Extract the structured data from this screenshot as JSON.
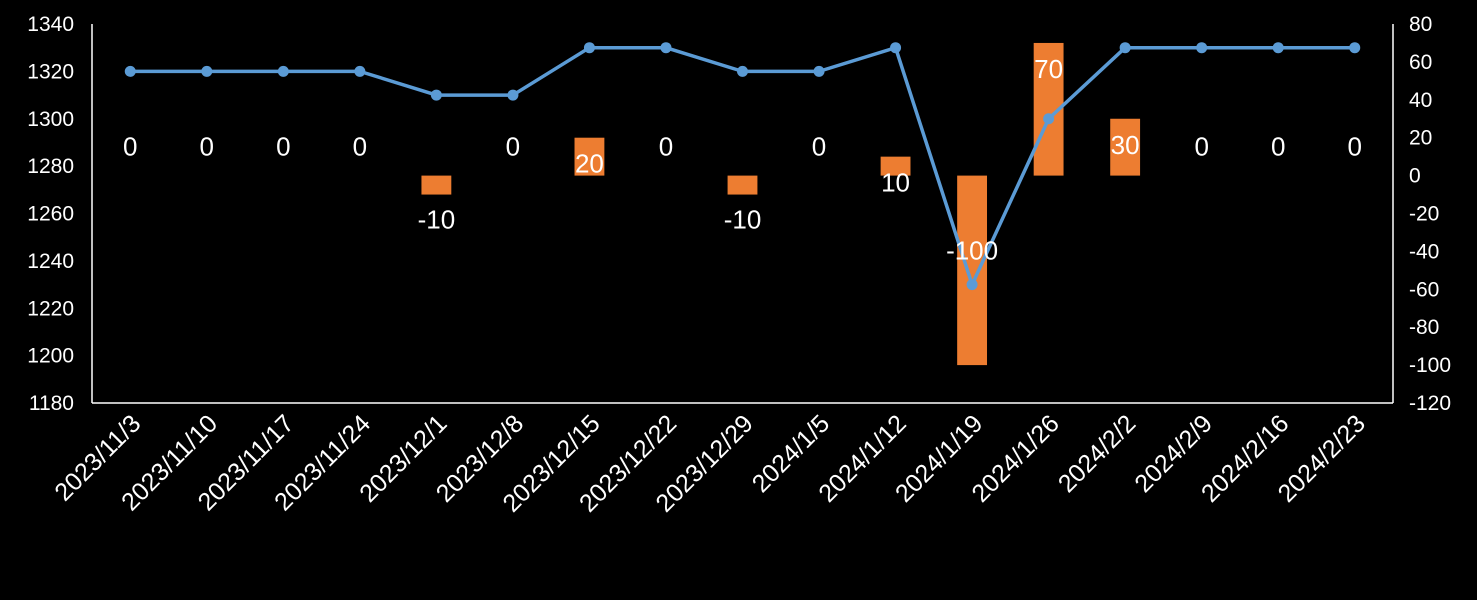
{
  "chart_data": {
    "type": "bar+line",
    "categories": [
      "2023/11/3",
      "2023/11/10",
      "2023/11/17",
      "2023/11/24",
      "2023/12/1",
      "2023/12/8",
      "2023/12/15",
      "2023/12/22",
      "2023/12/29",
      "2024/1/5",
      "2024/1/12",
      "2024/1/19",
      "2024/1/26",
      "2024/2/2",
      "2024/2/9",
      "2024/2/16",
      "2024/2/23"
    ],
    "series": [
      {
        "type": "line",
        "axis": "left",
        "color": "#5b9bd5",
        "values": [
          1320,
          1320,
          1320,
          1320,
          1310,
          1310,
          1330,
          1330,
          1320,
          1320,
          1330,
          1230,
          1300,
          1330,
          1330,
          1330,
          1330
        ]
      },
      {
        "type": "bar",
        "axis": "right",
        "color": "#ed7d31",
        "values": [
          0,
          0,
          0,
          0,
          -10,
          0,
          20,
          0,
          -10,
          0,
          10,
          -100,
          70,
          30,
          0,
          0,
          0
        ],
        "data_labels": [
          "0",
          "0",
          "0",
          "0",
          "-10",
          "0",
          "20",
          "0",
          "-10",
          "0",
          "10",
          "-100",
          "70",
          "30",
          "0",
          "0",
          "0"
        ]
      }
    ],
    "y_left": {
      "min": 1180,
      "max": 1340,
      "step": 20,
      "ticks": [
        "1180",
        "1200",
        "1220",
        "1240",
        "1260",
        "1280",
        "1300",
        "1320",
        "1340"
      ]
    },
    "y_right": {
      "min": -120,
      "max": 80,
      "step": 20,
      "ticks": [
        "-120",
        "-100",
        "-80",
        "-60",
        "-40",
        "-20",
        "0",
        "20",
        "40",
        "60",
        "80"
      ]
    },
    "grid": false,
    "legend": "none",
    "background": "#000000",
    "text_color": "#ffffff"
  }
}
